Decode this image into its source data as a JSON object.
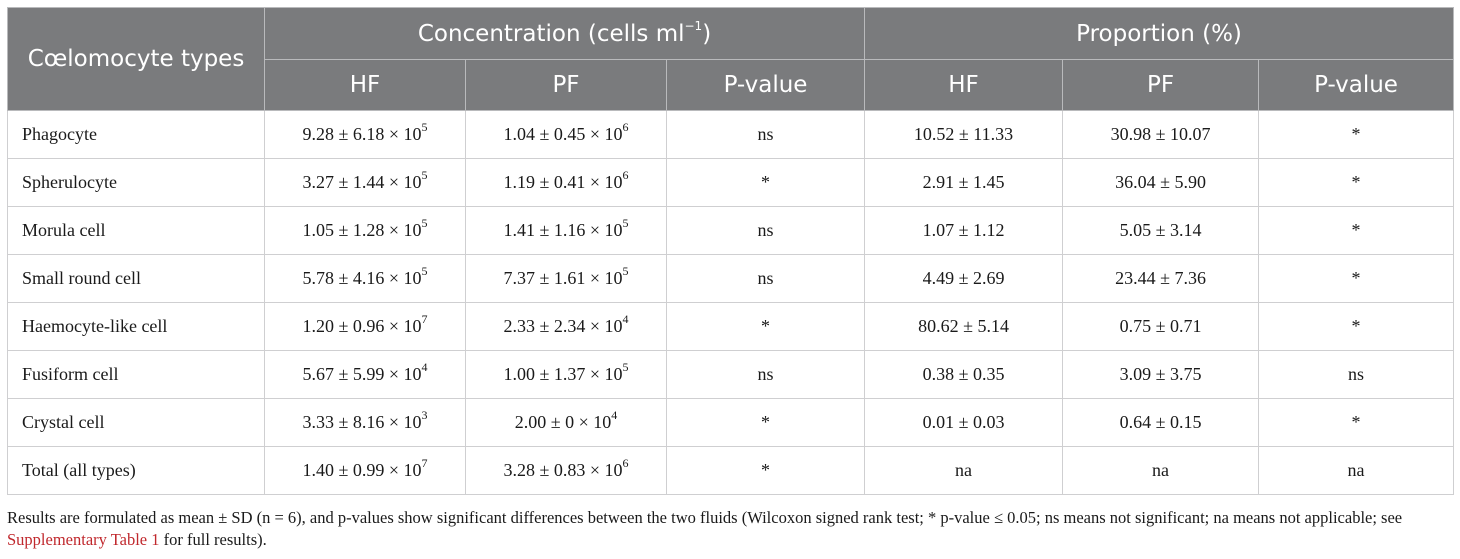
{
  "table": {
    "header": {
      "types": "Cœlomocyte types",
      "concentration": "Concentration (cells ml",
      "concentration_exp": "−1",
      "concentration_close": ")",
      "proportion": "Proportion (%)",
      "hf": "HF",
      "pf": "PF",
      "pvalue": "P-value"
    },
    "rows": [
      {
        "type": "Phagocyte",
        "conc_hf": "9.28 ± 6.18 × 10",
        "conc_hf_exp": "5",
        "conc_pf": "1.04 ± 0.45 × 10",
        "conc_pf_exp": "6",
        "conc_p": "ns",
        "prop_hf": "10.52 ± 11.33",
        "prop_pf": "30.98 ± 10.07",
        "prop_p": "*"
      },
      {
        "type": "Spherulocyte",
        "conc_hf": "3.27 ± 1.44 × 10",
        "conc_hf_exp": "5",
        "conc_pf": "1.19 ± 0.41 × 10",
        "conc_pf_exp": "6",
        "conc_p": "*",
        "prop_hf": "2.91 ± 1.45",
        "prop_pf": "36.04 ± 5.90",
        "prop_p": "*"
      },
      {
        "type": "Morula cell",
        "conc_hf": "1.05 ± 1.28 × 10",
        "conc_hf_exp": "5",
        "conc_pf": "1.41 ± 1.16 × 10",
        "conc_pf_exp": "5",
        "conc_p": "ns",
        "prop_hf": "1.07 ± 1.12",
        "prop_pf": "5.05 ± 3.14",
        "prop_p": "*"
      },
      {
        "type": "Small round cell",
        "conc_hf": "5.78 ± 4.16 × 10",
        "conc_hf_exp": "5",
        "conc_pf": "7.37 ± 1.61 × 10",
        "conc_pf_exp": "5",
        "conc_p": "ns",
        "prop_hf": "4.49 ± 2.69",
        "prop_pf": "23.44 ± 7.36",
        "prop_p": "*"
      },
      {
        "type": "Haemocyte-like cell",
        "conc_hf": "1.20 ± 0.96 × 10",
        "conc_hf_exp": "7",
        "conc_pf": "2.33 ± 2.34 × 10",
        "conc_pf_exp": "4",
        "conc_p": "*",
        "prop_hf": "80.62 ± 5.14",
        "prop_pf": "0.75 ± 0.71",
        "prop_p": "*"
      },
      {
        "type": "Fusiform cell",
        "conc_hf": "5.67 ± 5.99 × 10",
        "conc_hf_exp": "4",
        "conc_pf": "1.00 ± 1.37 × 10",
        "conc_pf_exp": "5",
        "conc_p": "ns",
        "prop_hf": "0.38 ± 0.35",
        "prop_pf": "3.09 ± 3.75",
        "prop_p": "ns"
      },
      {
        "type": "Crystal cell",
        "conc_hf": "3.33 ± 8.16 × 10",
        "conc_hf_exp": "3",
        "conc_pf": "2.00 ± 0 × 10",
        "conc_pf_exp": "4",
        "conc_p": "*",
        "prop_hf": "0.01 ± 0.03",
        "prop_pf": "0.64 ± 0.15",
        "prop_p": "*"
      },
      {
        "type": "Total (all types)",
        "conc_hf": "1.40 ± 0.99 × 10",
        "conc_hf_exp": "7",
        "conc_pf": "3.28 ± 0.83 × 10",
        "conc_pf_exp": "6",
        "conc_p": "*",
        "prop_hf": "na",
        "prop_pf": "na",
        "prop_p": "na"
      }
    ]
  },
  "footnote": {
    "text_before": "Results are formulated as mean ± SD (n = 6), and p-values show significant differences between the two fluids (Wilcoxon signed rank test; * p-value ≤ 0.05; ns means not significant; na means not applicable; see ",
    "link": "Supplementary Table 1",
    "text_after": " for full results).",
    "link_color": "#c0282d"
  }
}
